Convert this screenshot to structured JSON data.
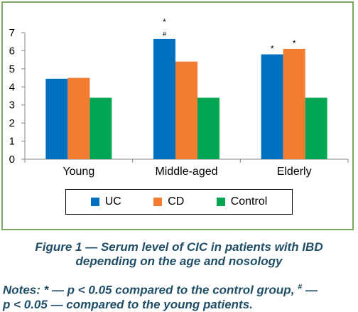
{
  "chart_data": {
    "type": "bar",
    "categories": [
      "Young",
      "Middle-aged",
      "Elderly"
    ],
    "series": [
      {
        "name": "UC",
        "color": "#0070c0",
        "values": [
          4.45,
          6.65,
          5.8
        ]
      },
      {
        "name": "CD",
        "color": "#f47c30",
        "values": [
          4.5,
          5.4,
          6.1
        ]
      },
      {
        "name": "Control",
        "color": "#00a651",
        "values": [
          3.4,
          3.4,
          3.4
        ]
      }
    ],
    "ylim": [
      0,
      7
    ],
    "yticks": [
      "0",
      "1",
      "2",
      "3",
      "4",
      "5",
      "6",
      "7"
    ],
    "grid": false,
    "legend_position": "bottom",
    "annotations": [
      {
        "category": "Middle-aged",
        "series": "UC",
        "marks": [
          "*",
          "#"
        ]
      },
      {
        "category": "Elderly",
        "series": "UC",
        "marks": [
          "*"
        ]
      },
      {
        "category": "Elderly",
        "series": "CD",
        "marks": [
          "*"
        ]
      }
    ]
  },
  "caption": {
    "line1": "Figure 1 — Serum level of CIC in patients with IBD",
    "line2": "depending on the age and nosology"
  },
  "notes": {
    "line1_prefix": "Notes: * — p < 0.05 compared to the control group, ",
    "line1_sup": "#",
    "line1_suffix": " —",
    "line2": "p < 0.05 — compared to the young patients."
  }
}
